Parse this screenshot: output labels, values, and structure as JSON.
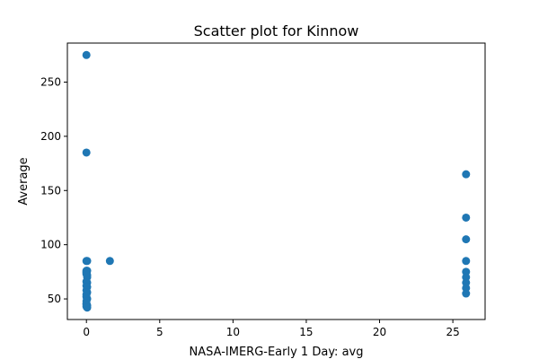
{
  "chart_data": {
    "type": "scatter",
    "title": "Scatter plot for Kinnow",
    "xlabel": "NASA-IMERG-Early 1 Day: avg",
    "ylabel": "Average",
    "xlim": [
      -1.3,
      27.2
    ],
    "ylim": [
      31,
      286
    ],
    "xticks": [
      0,
      5,
      10,
      15,
      20,
      25
    ],
    "yticks": [
      50,
      100,
      150,
      200,
      250
    ],
    "grid": false,
    "marker_color": "#1f77b4",
    "series": [
      {
        "x": [
          0,
          0,
          0,
          0.05,
          0,
          0.05,
          0,
          0.05,
          0,
          0.05,
          0,
          0.05,
          0,
          0.05,
          0,
          0,
          0.05,
          0,
          0,
          0,
          0.05,
          0,
          0.05,
          0,
          0,
          0.05,
          1.6,
          25.9,
          25.9,
          25.9,
          25.9,
          25.9,
          25.9,
          25.9,
          25.9,
          25.9
        ],
        "y": [
          275,
          185,
          85,
          85,
          76,
          76,
          74,
          70,
          66,
          65,
          62,
          61,
          58,
          56,
          54,
          52,
          50,
          48,
          46,
          45,
          44,
          43,
          42,
          75,
          73,
          72,
          85,
          165,
          125,
          105,
          85,
          75,
          70,
          65,
          60,
          55
        ]
      }
    ]
  }
}
